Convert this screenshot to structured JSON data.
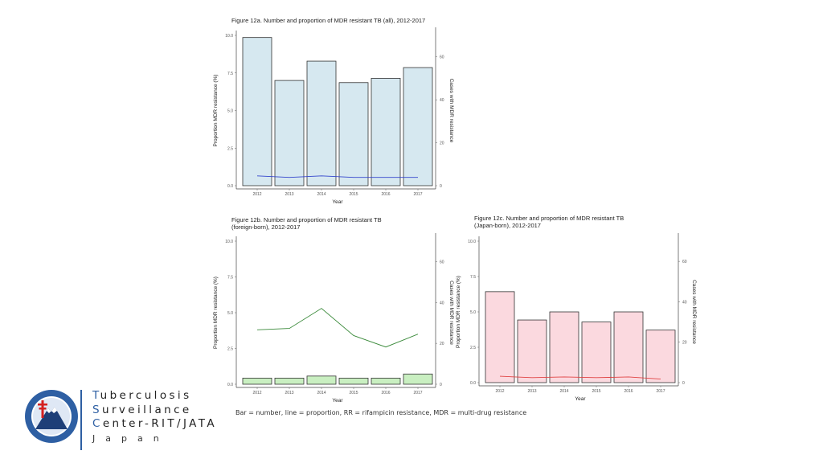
{
  "chart_data": [
    {
      "type": "bar",
      "title": "Figure 12a. Number and proportion of MDR resistant TB (all), 2012-2017",
      "categories": [
        "2012",
        "2013",
        "2014",
        "2015",
        "2016",
        "2017"
      ],
      "bar_values": [
        69,
        49,
        58,
        48,
        50,
        55
      ],
      "line_values": [
        0.65,
        0.55,
        0.65,
        0.55,
        0.55,
        0.55
      ],
      "xlabel": "Year",
      "ylabel": "Proportion MDR resistance (%)",
      "y2label": "Cases with MDR resistance",
      "ylim": [
        0,
        10
      ],
      "y2lim": [
        0,
        70
      ],
      "yticks": [
        "0.0",
        "2.5",
        "5.0",
        "7.5",
        "10.0"
      ],
      "y2ticks": [
        "0",
        "20",
        "40",
        "60"
      ],
      "bar_color": "#d6e8f0",
      "line_color": "#3344cc"
    },
    {
      "type": "bar",
      "title": "Figure 12b. Number and proportion of MDR resistant TB (foreign-born), 2012-2017",
      "title_lines": [
        "Figure 12b. Number and proportion of MDR resistant TB",
        "(foreign-born), 2012-2017"
      ],
      "categories": [
        "2012",
        "2013",
        "2014",
        "2015",
        "2016",
        "2017"
      ],
      "bar_values": [
        3,
        3,
        4,
        3,
        3,
        5
      ],
      "line_values": [
        3.8,
        3.9,
        5.3,
        3.4,
        2.6,
        3.5
      ],
      "xlabel": "Year",
      "ylabel": "Proportion MDR resistance (%)",
      "y2label": "Cases with MDR resistance",
      "ylim": [
        0,
        10
      ],
      "y2lim": [
        0,
        70
      ],
      "yticks": [
        "0.0",
        "2.5",
        "5.0",
        "7.5",
        "10.0"
      ],
      "y2ticks": [
        "0",
        "20",
        "40",
        "60"
      ],
      "bar_color": "#c9efc1",
      "line_color": "#3a8a3a"
    },
    {
      "type": "bar",
      "title": "Figure 12c. Number and proportion of MDR resistant TB (Japan-born), 2012-2017",
      "title_lines": [
        "Figure 12c. Number and proportion of MDR resistant TB",
        "(Japan-born), 2012-2017"
      ],
      "categories": [
        "2012",
        "2013",
        "2014",
        "2015",
        "2016",
        "2017"
      ],
      "bar_values": [
        45,
        31,
        35,
        30,
        35,
        26
      ],
      "line_values": [
        0.45,
        0.35,
        0.4,
        0.35,
        0.4,
        0.25
      ],
      "xlabel": "Year",
      "ylabel": "Proportion MDR resistance (%)",
      "y2label": "Cases with MDR resistance",
      "ylim": [
        0,
        10
      ],
      "y2lim": [
        0,
        70
      ],
      "yticks": [
        "0.0",
        "2.5",
        "5.0",
        "7.5",
        "10.0"
      ],
      "y2ticks": [
        "0",
        "20",
        "40",
        "60"
      ],
      "bar_color": "#fbd9df",
      "line_color": "#e04444"
    }
  ],
  "footnote": "Bar = number, line = proportion, RR = rifampicin resistance, MDR = multi-drug resistance",
  "branding": {
    "line1_cap": "T",
    "line1_rest": "uberculosis",
    "line2_cap": "S",
    "line2_rest": "urveillance",
    "line3_cap": "C",
    "line3_rest": "enter-RIT/JATA",
    "line4": "Japan"
  },
  "accent_color": "#2e5fa3"
}
